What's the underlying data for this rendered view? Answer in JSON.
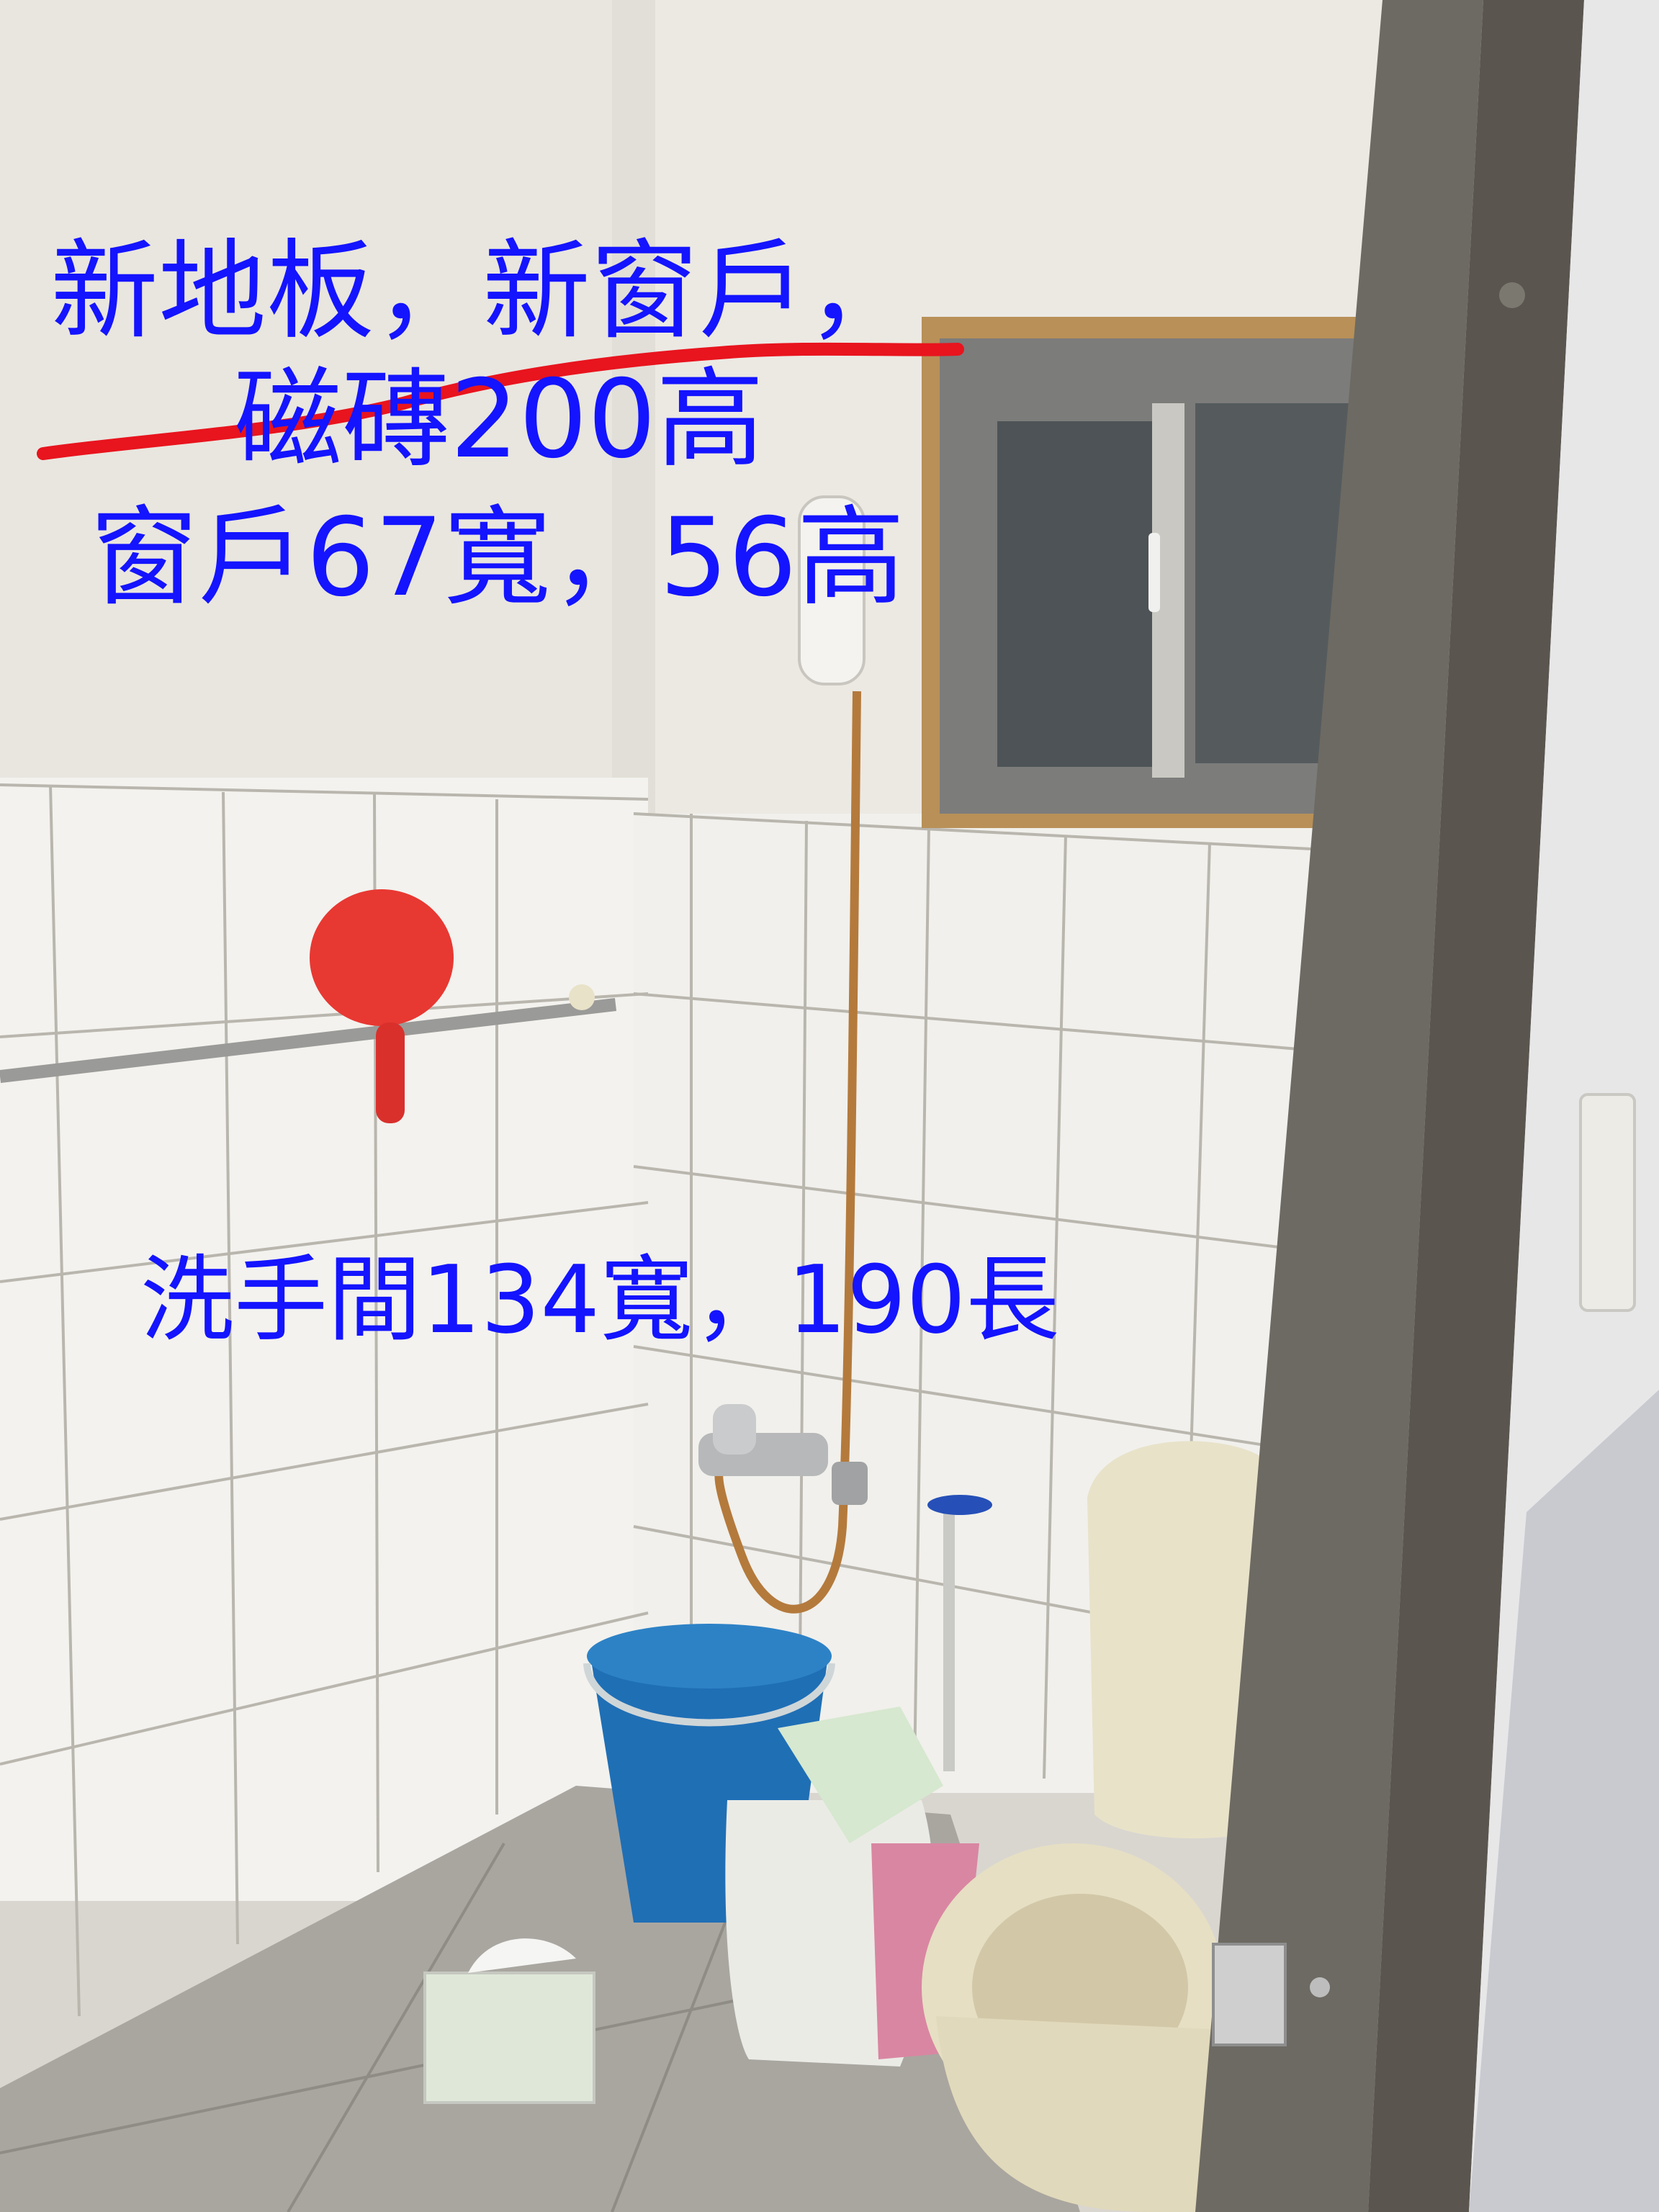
{
  "annotations": {
    "line1": "新地板，新窗戶，",
    "line2": "磁磚200高",
    "line3": "窗戶67寬，56高",
    "line4": "洗手間134寬，190長"
  },
  "colors": {
    "annotation_text": "#1414ff",
    "strike_line": "#e8141e"
  },
  "scene_objects": [
    "wall-tiles",
    "window",
    "shower-head-icon",
    "towel-bar",
    "red-scoop",
    "blue-bucket",
    "toilet",
    "tissue-pack",
    "door-frame",
    "light-switch"
  ]
}
